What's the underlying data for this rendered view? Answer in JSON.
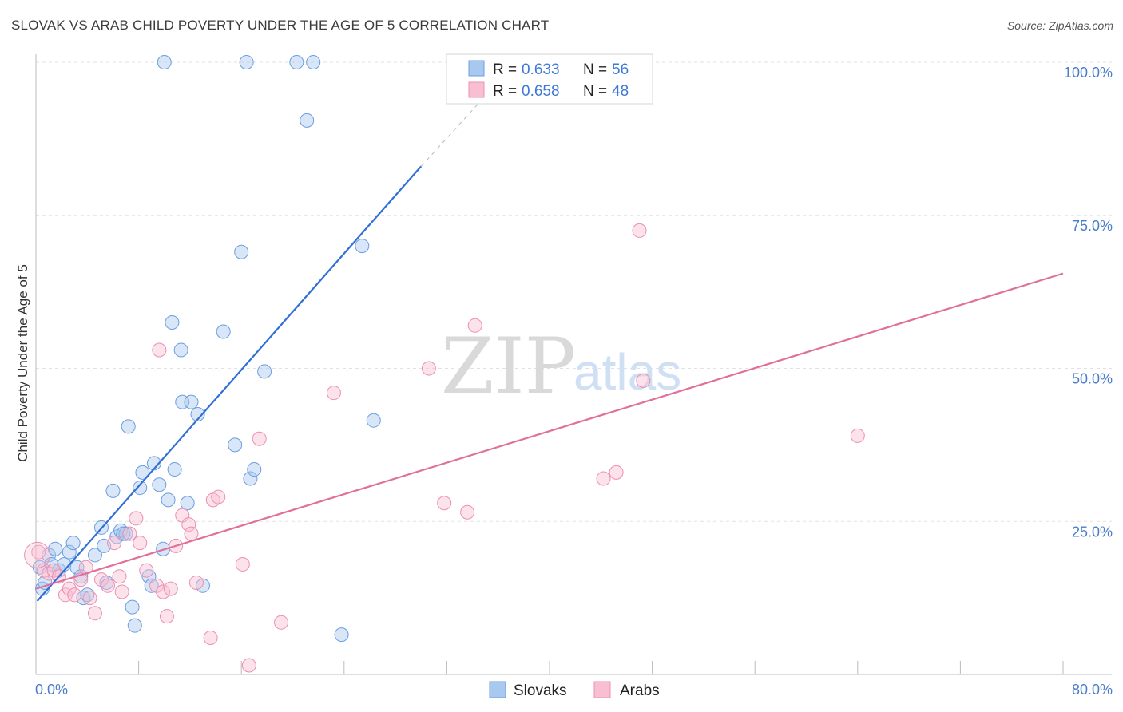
{
  "header": {
    "title": "SLOVAK VS ARAB CHILD POVERTY UNDER THE AGE OF 5 CORRELATION CHART",
    "source": "Source: ZipAtlas.com"
  },
  "watermark": {
    "zip": "ZIP",
    "atlas": "atlas"
  },
  "chart_data": {
    "type": "scatter",
    "ylabel": "Child Poverty Under the Age of 5",
    "xlim": [
      0,
      80
    ],
    "ylim": [
      0,
      100
    ],
    "x_tick_labels": [
      "0.0%",
      "80.0%"
    ],
    "y_ticks": [
      {
        "value": 25,
        "label": "25.0%"
      },
      {
        "value": 50,
        "label": "50.0%"
      },
      {
        "value": 75,
        "label": "75.0%"
      },
      {
        "value": 100,
        "label": "100.0%"
      }
    ],
    "legend": [
      {
        "r_label": "R =",
        "r_value": "0.633",
        "n_label": "N =",
        "n_value": "56"
      },
      {
        "r_label": "R =",
        "r_value": "0.658",
        "n_label": "N =",
        "n_value": "48"
      }
    ],
    "series": [
      {
        "name": "Slovaks",
        "color": "#a9c8f0",
        "stroke": "#6b9ee0",
        "line_color": "#2f6fd6",
        "trend": {
          "x0": 0.1,
          "y0": 12.0,
          "x1": 30.0,
          "y1": 83.0,
          "dash_x1": 35.0,
          "dash_y1": 94.5
        },
        "points": [
          [
            0.3,
            17.5
          ],
          [
            0.5,
            14.0
          ],
          [
            0.7,
            15.0
          ],
          [
            1.0,
            19.5
          ],
          [
            1.2,
            18.0
          ],
          [
            1.5,
            20.5
          ],
          [
            1.8,
            17.0
          ],
          [
            2.2,
            18.0
          ],
          [
            2.6,
            20.0
          ],
          [
            2.9,
            21.5
          ],
          [
            3.2,
            17.5
          ],
          [
            3.5,
            16.0
          ],
          [
            3.7,
            12.5
          ],
          [
            4.0,
            13.0
          ],
          [
            4.6,
            19.5
          ],
          [
            5.1,
            24.0
          ],
          [
            5.3,
            21.0
          ],
          [
            5.5,
            15.0
          ],
          [
            6.0,
            30.0
          ],
          [
            6.3,
            22.5
          ],
          [
            6.6,
            23.5
          ],
          [
            7.0,
            23.0
          ],
          [
            7.2,
            40.5
          ],
          [
            7.5,
            11.0
          ],
          [
            7.7,
            8.0
          ],
          [
            8.1,
            30.5
          ],
          [
            8.3,
            33.0
          ],
          [
            8.8,
            16.0
          ],
          [
            9.0,
            14.5
          ],
          [
            9.2,
            34.5
          ],
          [
            9.6,
            31.0
          ],
          [
            9.9,
            20.5
          ],
          [
            10.3,
            28.5
          ],
          [
            10.6,
            57.5
          ],
          [
            10.8,
            33.5
          ],
          [
            11.3,
            53.0
          ],
          [
            11.4,
            44.5
          ],
          [
            11.8,
            28.0
          ],
          [
            12.1,
            44.5
          ],
          [
            12.6,
            42.5
          ],
          [
            13.0,
            14.5
          ],
          [
            14.6,
            56.0
          ],
          [
            15.5,
            37.5
          ],
          [
            16.0,
            69.0
          ],
          [
            16.7,
            32.0
          ],
          [
            17.0,
            33.5
          ],
          [
            17.8,
            49.5
          ],
          [
            21.1,
            90.5
          ],
          [
            23.8,
            6.5
          ],
          [
            25.4,
            70.0
          ],
          [
            26.3,
            41.5
          ],
          [
            10.0,
            100.0
          ],
          [
            16.4,
            100.0
          ],
          [
            20.3,
            100.0
          ],
          [
            21.6,
            100.0
          ],
          [
            6.8,
            23.0
          ]
        ]
      },
      {
        "name": "Arabs",
        "color": "#f8bfd3",
        "stroke": "#ec8fb0",
        "line_color": "#e0709a",
        "trend": {
          "x0": 0.0,
          "y0": 14.0,
          "x1": 80.0,
          "y1": 65.5
        },
        "points": [
          [
            0.2,
            20.0
          ],
          [
            0.6,
            17.0
          ],
          [
            1.0,
            16.5
          ],
          [
            1.4,
            17.0
          ],
          [
            1.8,
            16.0
          ],
          [
            2.3,
            13.0
          ],
          [
            2.6,
            14.0
          ],
          [
            3.0,
            13.0
          ],
          [
            3.5,
            15.5
          ],
          [
            3.9,
            17.5
          ],
          [
            4.2,
            12.5
          ],
          [
            4.6,
            10.0
          ],
          [
            5.1,
            15.5
          ],
          [
            5.6,
            14.5
          ],
          [
            6.1,
            21.5
          ],
          [
            6.5,
            16.0
          ],
          [
            6.7,
            13.5
          ],
          [
            7.3,
            23.0
          ],
          [
            7.8,
            25.5
          ],
          [
            8.1,
            21.5
          ],
          [
            8.6,
            17.0
          ],
          [
            9.4,
            14.5
          ],
          [
            9.6,
            53.0
          ],
          [
            9.9,
            13.5
          ],
          [
            10.2,
            9.5
          ],
          [
            10.5,
            14.0
          ],
          [
            10.9,
            21.0
          ],
          [
            11.4,
            26.0
          ],
          [
            11.9,
            24.5
          ],
          [
            12.1,
            23.0
          ],
          [
            12.5,
            15.0
          ],
          [
            13.6,
            6.0
          ],
          [
            13.8,
            28.5
          ],
          [
            14.2,
            29.0
          ],
          [
            16.1,
            18.0
          ],
          [
            16.6,
            1.5
          ],
          [
            17.4,
            38.5
          ],
          [
            19.1,
            8.5
          ],
          [
            23.2,
            46.0
          ],
          [
            30.6,
            50.0
          ],
          [
            31.8,
            28.0
          ],
          [
            34.2,
            57.0
          ],
          [
            33.6,
            26.5
          ],
          [
            44.2,
            32.0
          ],
          [
            45.2,
            33.0
          ],
          [
            47.3,
            48.0
          ],
          [
            47.0,
            72.5
          ],
          [
            64.0,
            39.0
          ]
        ]
      }
    ]
  }
}
